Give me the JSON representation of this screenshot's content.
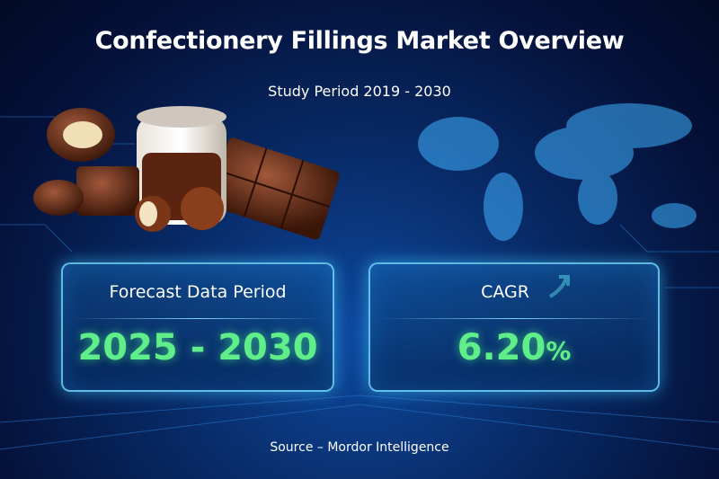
{
  "header": {
    "title": "Confectionery Fillings Market Overview",
    "subtitle": "Study Period 2019 - 2030"
  },
  "cards": {
    "forecast": {
      "label": "Forecast Data Period",
      "value": "2025 - 2030"
    },
    "cagr": {
      "label": "CAGR",
      "value": "6.20",
      "unit": "%"
    }
  },
  "footer": {
    "source": "Source – Mordor Intelligence"
  }
}
